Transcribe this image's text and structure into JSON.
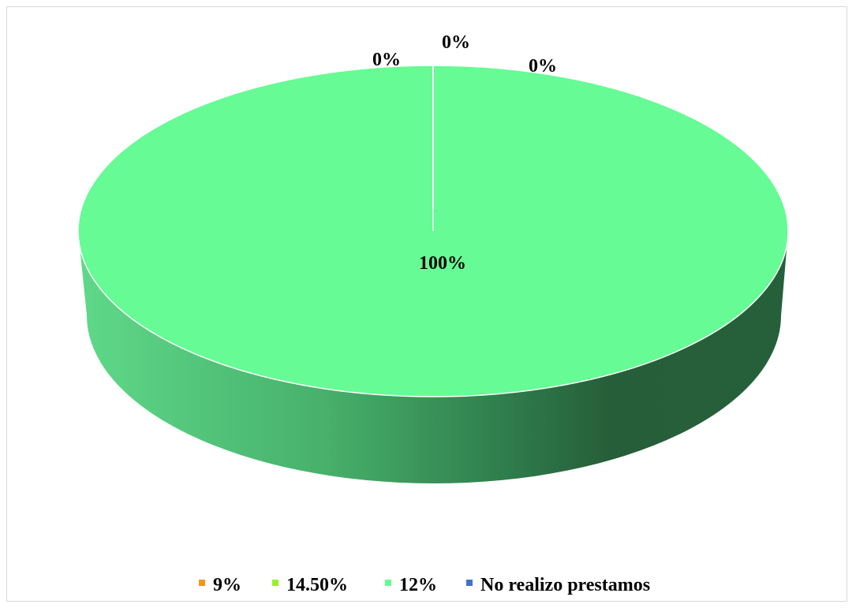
{
  "colors": {
    "slice_9": "#f7941d",
    "slice_14_50": "#99f02a",
    "slice_12": "#66fb94",
    "slice_no_prestamos": "#4472c4"
  },
  "chart_data": {
    "type": "pie",
    "style": "3d",
    "title": "",
    "categories": [
      "9%",
      "14.50%",
      "12%",
      "No realizo prestamos"
    ],
    "values": [
      0,
      0,
      100,
      0
    ],
    "data_labels": [
      "0%",
      "0%",
      "100%",
      "0%"
    ],
    "legend": {
      "position": "bottom",
      "entries": [
        "9%",
        "14.50%",
        "12%",
        "No realizo prestamos"
      ]
    }
  }
}
